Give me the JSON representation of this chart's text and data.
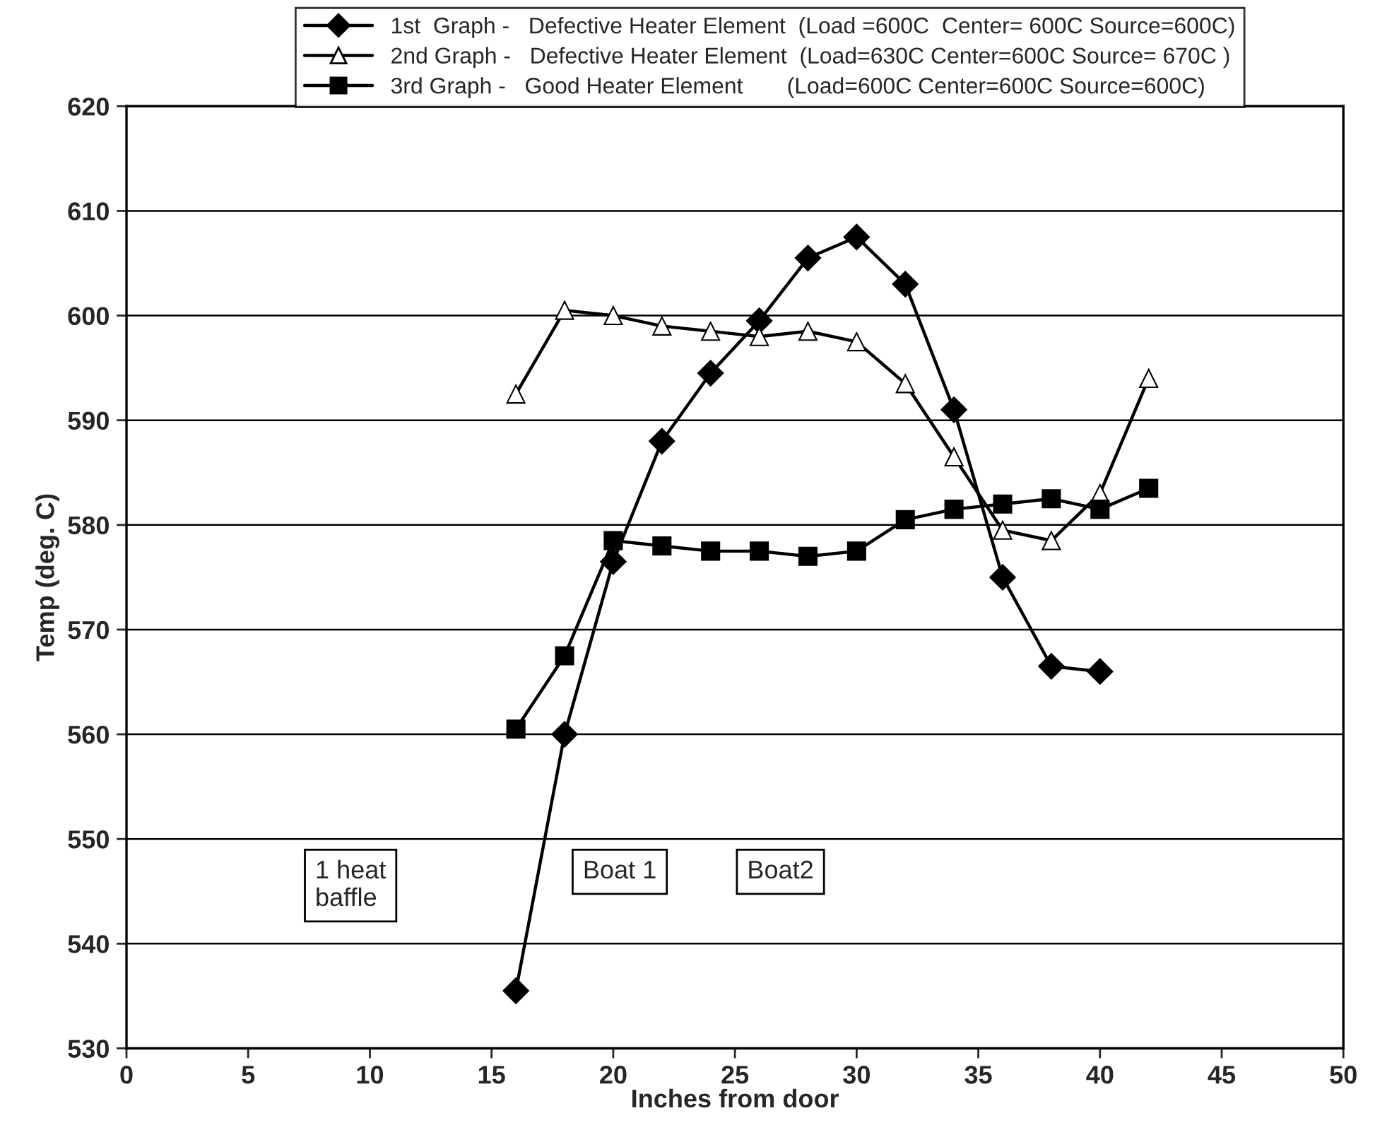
{
  "chart_data": {
    "type": "line",
    "xlabel": "Inches from door",
    "ylabel": "Temp (deg. C)",
    "xlim": [
      0,
      50
    ],
    "xticks": [
      0,
      5,
      10,
      15,
      20,
      25,
      30,
      35,
      40,
      45,
      50
    ],
    "ylim": [
      530,
      620
    ],
    "yticks": [
      530,
      540,
      550,
      560,
      570,
      580,
      590,
      600,
      610,
      620
    ],
    "grid": "y",
    "legend": "top",
    "line_style": "solid",
    "series": [
      {
        "name": "1st  Graph -   Defective Heater Element  (Load =600C  Center= 600C Source=600C)",
        "color": "#000000",
        "marker": "diamond",
        "x": [
          16,
          18,
          20,
          22,
          24,
          26,
          28,
          30,
          32,
          34,
          36,
          38,
          40
        ],
        "values": [
          535.5,
          560,
          576.5,
          588,
          594.5,
          599.5,
          605.5,
          607.5,
          603,
          591,
          575,
          566.5,
          566
        ]
      },
      {
        "name": "2nd Graph -   Defective Heater Element  (Load=630C Center=600C Source= 670C )",
        "color": "#000000",
        "marker": "triangle",
        "x": [
          16,
          18,
          20,
          22,
          24,
          26,
          28,
          30,
          32,
          34,
          36,
          38,
          40,
          42
        ],
        "values": [
          592.5,
          600.5,
          600,
          599,
          598.5,
          598,
          598.5,
          597.5,
          593.5,
          586.5,
          579.5,
          578.5,
          583,
          594
        ]
      },
      {
        "name": "3rd Graph -   Good Heater Element       (Load=600C Center=600C Source=600C)",
        "color": "#000000",
        "marker": "square",
        "x": [
          16,
          18,
          20,
          22,
          24,
          26,
          28,
          30,
          32,
          34,
          36,
          38,
          40,
          42
        ],
        "values": [
          560.5,
          567.5,
          578.5,
          578,
          577.5,
          577.5,
          577,
          577.5,
          580.5,
          581.5,
          582,
          582.5,
          581.5,
          583.5
        ]
      }
    ],
    "annotations": [
      "1 heat\nbaffle",
      "Boat 1",
      "Boat2"
    ]
  }
}
